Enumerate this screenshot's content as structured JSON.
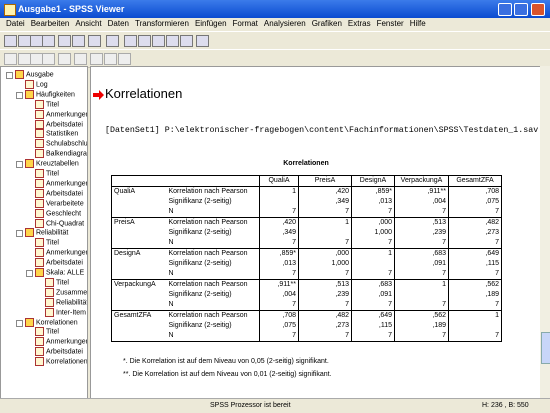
{
  "window": {
    "title": "Ausgabe1 - SPSS Viewer"
  },
  "menu": [
    "Datei",
    "Bearbeiten",
    "Ansicht",
    "Daten",
    "Transformieren",
    "Einfügen",
    "Format",
    "Analysieren",
    "Grafiken",
    "Extras",
    "Fenster",
    "Hilfe"
  ],
  "tree": {
    "label": "Ausgabe",
    "children": [
      {
        "label": "Log"
      },
      {
        "label": "Häufigkeiten",
        "children": [
          {
            "label": "Titel"
          },
          {
            "label": "Anmerkungen"
          },
          {
            "label": "Arbeitsdatei"
          },
          {
            "label": "Statistiken"
          },
          {
            "label": "Schulabschluss"
          },
          {
            "label": "Balkendiagramm"
          }
        ]
      },
      {
        "label": "Kreuztabellen",
        "children": [
          {
            "label": "Titel"
          },
          {
            "label": "Anmerkungen"
          },
          {
            "label": "Arbeitsdatei"
          },
          {
            "label": "Verarbeitete"
          },
          {
            "label": "Geschlecht"
          },
          {
            "label": "Chi-Quadrat"
          }
        ]
      },
      {
        "label": "Reliabilität",
        "children": [
          {
            "label": "Titel"
          },
          {
            "label": "Anmerkungen"
          },
          {
            "label": "Arbeitsdatei"
          },
          {
            "label": "Skala: ALLE",
            "children": [
              {
                "label": "Titel"
              },
              {
                "label": "Zusammenfassung"
              },
              {
                "label": "Reliabilität"
              },
              {
                "label": "Inter-Item"
              }
            ]
          }
        ]
      },
      {
        "label": "Korrelationen",
        "children": [
          {
            "label": "Titel"
          },
          {
            "label": "Anmerkungen"
          },
          {
            "label": "Arbeitsdatei"
          },
          {
            "label": "Korrelationen"
          }
        ]
      }
    ]
  },
  "content": {
    "heading": "Korrelationen",
    "dataset": "[DatenSet1] P:\\elektronischer-fragebogen\\content\\Fachinformationen\\SPSS\\Testdaten_1.sav",
    "table": {
      "title": "Korrelationen",
      "columns": [
        "QualiA",
        "PreisA",
        "DesignA",
        "VerpackungA",
        "GesamtZFA"
      ],
      "stat_labels": [
        "Korrelation nach Pearson",
        "Signifikanz (2-seitig)",
        "N"
      ],
      "rows": [
        {
          "name": "QualiA",
          "cells": [
            [
              "1",
              ",420",
              ",859*",
              ",911**",
              ",708"
            ],
            [
              null,
              ",349",
              ",013",
              ",004",
              ",075"
            ],
            [
              "7",
              "7",
              "7",
              "7",
              "7"
            ]
          ]
        },
        {
          "name": "PreisA",
          "cells": [
            [
              ",420",
              "1",
              ",000",
              ",513",
              ",482"
            ],
            [
              ",349",
              null,
              "1,000",
              ",239",
              ",273"
            ],
            [
              "7",
              "7",
              "7",
              "7",
              "7"
            ]
          ]
        },
        {
          "name": "DesignA",
          "cells": [
            [
              ",859*",
              ",000",
              "1",
              ",683",
              ",649"
            ],
            [
              ",013",
              "1,000",
              null,
              ",091",
              ",115"
            ],
            [
              "7",
              "7",
              "7",
              "7",
              "7"
            ]
          ]
        },
        {
          "name": "VerpackungA",
          "cells": [
            [
              ",911**",
              ",513",
              ",683",
              "1",
              ",562"
            ],
            [
              ",004",
              ",239",
              ",091",
              null,
              ",189"
            ],
            [
              "7",
              "7",
              "7",
              "7",
              "7"
            ]
          ]
        },
        {
          "name": "GesamtZFA",
          "cells": [
            [
              ",708",
              ",482",
              ",649",
              ",562",
              "1"
            ],
            [
              ",075",
              ",273",
              ",115",
              ",189",
              null
            ],
            [
              "7",
              "7",
              "7",
              "7",
              "7"
            ]
          ]
        }
      ],
      "footnotes": [
        "*. Die Korrelation ist auf dem Niveau von 0,05 (2-seitig) signifikant.",
        "**. Die Korrelation ist auf dem Niveau von 0,01 (2-seitig) signifikant."
      ]
    }
  },
  "status": {
    "message": "SPSS Prozessor ist bereit",
    "info": "H: 236 , B: 550"
  }
}
